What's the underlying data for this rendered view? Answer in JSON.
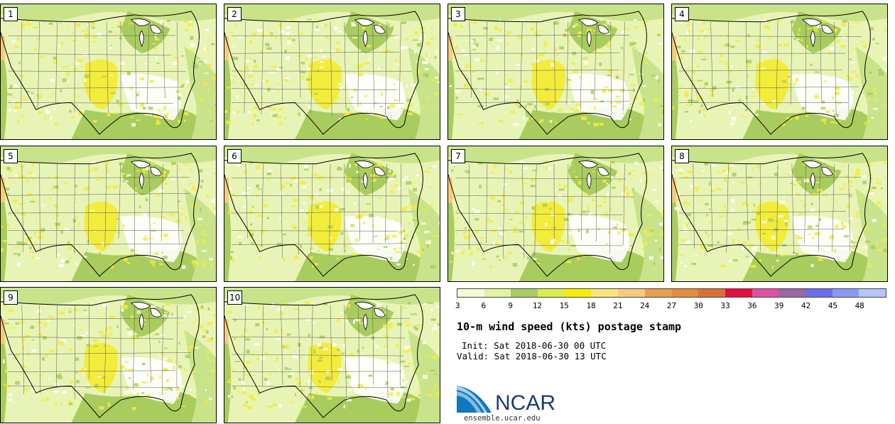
{
  "panels": [
    {
      "label": "1"
    },
    {
      "label": "2"
    },
    {
      "label": "3"
    },
    {
      "label": "4"
    },
    {
      "label": "5"
    },
    {
      "label": "6"
    },
    {
      "label": "7"
    },
    {
      "label": "8"
    },
    {
      "label": "9"
    },
    {
      "label": "10"
    }
  ],
  "colorbar": {
    "ticks": [
      "3",
      "6",
      "9",
      "12",
      "15",
      "18",
      "21",
      "24",
      "27",
      "30",
      "33",
      "36",
      "39",
      "42",
      "45",
      "48"
    ],
    "colors": [
      "#f4fad2",
      "#e2f3a4",
      "#a9cc5f",
      "#dcec4b",
      "#f8ec02",
      "#fbe47a",
      "#f6cc7c",
      "#e8a04d",
      "#e48a3d",
      "#dc7034",
      "#e60e3e",
      "#e050a0",
      "#9b67a7",
      "#6a6ef0",
      "#8899f6",
      "#b4c6f6"
    ]
  },
  "title": "10-m wind speed (kts) postage stamp",
  "init": "Init: Sat 2018-06-30 00 UTC",
  "valid": "Valid: Sat 2018-06-30 13 UTC",
  "logo": {
    "text": "NCAR",
    "site": "ensemble.ucar.edu",
    "color": "#1a3b6e",
    "swoosh_color": "#0f78be"
  }
}
